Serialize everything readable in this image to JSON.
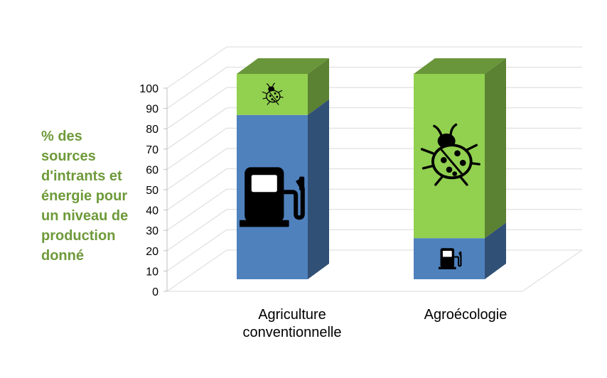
{
  "chart_data": {
    "type": "bar",
    "stacked": true,
    "three_d": true,
    "title": "",
    "xlabel": "",
    "ylabel_lines": [
      "% des",
      "sources",
      "d'intrants et",
      "énergie pour",
      "un niveau de",
      "production",
      "donné"
    ],
    "ylim": [
      0,
      100
    ],
    "yticks": [
      0,
      10,
      20,
      30,
      40,
      50,
      60,
      70,
      80,
      90,
      100
    ],
    "grid": true,
    "legend": "none",
    "categories": [
      {
        "lines": [
          "Agriculture",
          "conventionnelle"
        ]
      },
      {
        "lines": [
          "Agroécologie"
        ]
      }
    ],
    "series": [
      {
        "values": [
          80,
          20
        ],
        "color": "#4f81bd",
        "icon": "fuel-pump-icon"
      },
      {
        "values": [
          20,
          80
        ],
        "color": "#92d050",
        "icon": "ladybug-icon"
      }
    ]
  }
}
